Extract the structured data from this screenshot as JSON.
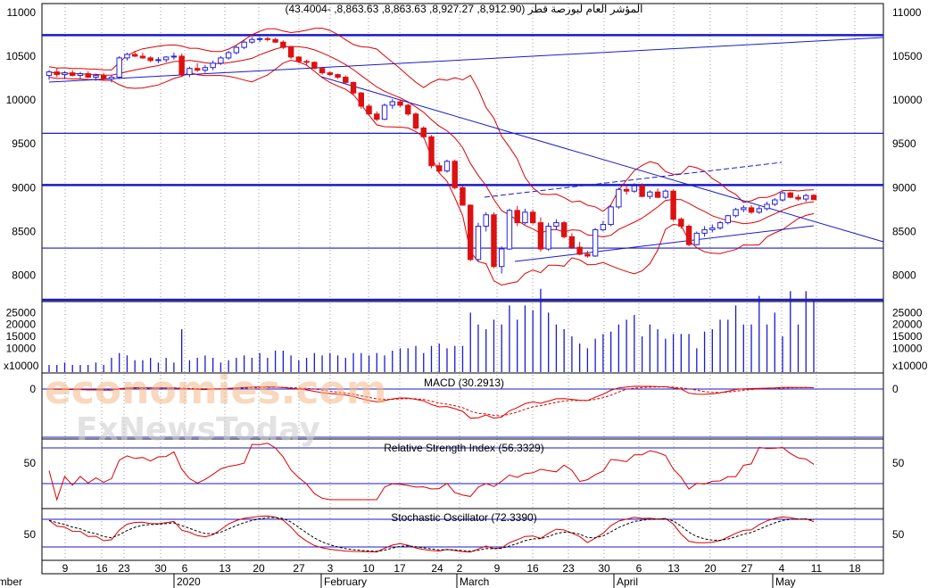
{
  "chart_data": {
    "type": "candlestick",
    "title": "المؤشر العام لبورصة قطر (8,912.90, 8,927.27, 8,863.63, 8,863.63, -43.4004)",
    "price_axis": {
      "ylim": [
        7700,
        11100
      ],
      "ticks": [
        "11000",
        "10500",
        "10000",
        "9500",
        "9000",
        "8500",
        "8000"
      ]
    },
    "volume_axis": {
      "ticks": [
        "25000",
        "20000",
        "15000",
        "10000"
      ],
      "multiplier_label": "x10000"
    },
    "x_ticks": [
      "9",
      "16",
      "23",
      "30",
      "6",
      "13",
      "20",
      "27",
      "3",
      "10",
      "17",
      "24",
      "2",
      "9",
      "16",
      "23",
      "30",
      "6",
      "13",
      "20",
      "27",
      "4",
      "11",
      "18"
    ],
    "month_labels": [
      "ember",
      "2020",
      "February",
      "March",
      "April",
      "May"
    ],
    "candles": [
      [
        10280,
        10340,
        10230,
        10320
      ],
      [
        10320,
        10360,
        10260,
        10290
      ],
      [
        10290,
        10330,
        10240,
        10310
      ],
      [
        10310,
        10340,
        10270,
        10280
      ],
      [
        10280,
        10320,
        10240,
        10300
      ],
      [
        10300,
        10330,
        10250,
        10260
      ],
      [
        10260,
        10300,
        10220,
        10280
      ],
      [
        10280,
        10310,
        10230,
        10240
      ],
      [
        10240,
        10280,
        10200,
        10260
      ],
      [
        10260,
        10500,
        10240,
        10480
      ],
      [
        10480,
        10540,
        10450,
        10520
      ],
      [
        10520,
        10560,
        10490,
        10500
      ],
      [
        10500,
        10540,
        10470,
        10480
      ],
      [
        10480,
        10500,
        10430,
        10450
      ],
      [
        10450,
        10490,
        10420,
        10460
      ],
      [
        10460,
        10500,
        10430,
        10490
      ],
      [
        10490,
        10540,
        10460,
        10500
      ],
      [
        10500,
        10530,
        10270,
        10290
      ],
      [
        10290,
        10380,
        10260,
        10360
      ],
      [
        10360,
        10420,
        10320,
        10340
      ],
      [
        10340,
        10400,
        10310,
        10370
      ],
      [
        10370,
        10450,
        10340,
        10420
      ],
      [
        10420,
        10500,
        10400,
        10480
      ],
      [
        10480,
        10560,
        10460,
        10540
      ],
      [
        10540,
        10620,
        10520,
        10600
      ],
      [
        10600,
        10680,
        10580,
        10660
      ],
      [
        10660,
        10720,
        10640,
        10690
      ],
      [
        10690,
        10720,
        10660,
        10700
      ],
      [
        10700,
        10720,
        10670,
        10690
      ],
      [
        10690,
        10710,
        10650,
        10660
      ],
      [
        10660,
        10680,
        10580,
        10600
      ],
      [
        10600,
        10610,
        10470,
        10490
      ],
      [
        10490,
        10500,
        10420,
        10440
      ],
      [
        10440,
        10460,
        10400,
        10430
      ],
      [
        10430,
        10440,
        10350,
        10360
      ],
      [
        10360,
        10380,
        10290,
        10310
      ],
      [
        10310,
        10330,
        10270,
        10290
      ],
      [
        10290,
        10300,
        10240,
        10260
      ],
      [
        10260,
        10280,
        10190,
        10200
      ],
      [
        10200,
        10210,
        10060,
        10080
      ],
      [
        10080,
        10090,
        9900,
        9930
      ],
      [
        9930,
        9950,
        9820,
        9840
      ],
      [
        9840,
        9870,
        9760,
        9780
      ],
      [
        9780,
        9960,
        9770,
        9940
      ],
      [
        9940,
        10010,
        9900,
        9980
      ],
      [
        9980,
        10000,
        9920,
        9940
      ],
      [
        9940,
        9960,
        9820,
        9840
      ],
      [
        9840,
        9860,
        9660,
        9680
      ],
      [
        9680,
        9700,
        9560,
        9580
      ],
      [
        9580,
        9600,
        9220,
        9250
      ],
      [
        9250,
        9290,
        9160,
        9190
      ],
      [
        9190,
        9320,
        9170,
        9300
      ],
      [
        9300,
        9320,
        8980,
        9000
      ],
      [
        9000,
        9020,
        8800,
        8800
      ],
      [
        8800,
        8810,
        8160,
        8180
      ],
      [
        8180,
        8600,
        8160,
        8560
      ],
      [
        8560,
        8720,
        8500,
        8690
      ],
      [
        8690,
        8720,
        8080,
        8100
      ],
      [
        8100,
        8330,
        8020,
        8300
      ],
      [
        8300,
        8760,
        8290,
        8740
      ],
      [
        8740,
        8790,
        8560,
        8600
      ],
      [
        8600,
        8760,
        8580,
        8720
      ],
      [
        8720,
        8750,
        8580,
        8600
      ],
      [
        8600,
        8660,
        8270,
        8300
      ],
      [
        8300,
        8600,
        8280,
        8560
      ],
      [
        8560,
        8640,
        8520,
        8600
      ],
      [
        8600,
        8620,
        8420,
        8440
      ],
      [
        8440,
        8480,
        8300,
        8320
      ],
      [
        8320,
        8380,
        8230,
        8240
      ],
      [
        8240,
        8280,
        8200,
        8220
      ],
      [
        8220,
        8540,
        8210,
        8520
      ],
      [
        8520,
        8620,
        8500,
        8580
      ],
      [
        8580,
        8800,
        8560,
        8780
      ],
      [
        8780,
        9000,
        8760,
        8980
      ],
      [
        8980,
        9030,
        8920,
        8960
      ],
      [
        8960,
        9050,
        8940,
        9020
      ],
      [
        9020,
        9050,
        8890,
        8900
      ],
      [
        8900,
        8970,
        8870,
        8950
      ],
      [
        8950,
        8990,
        8880,
        8890
      ],
      [
        8890,
        8980,
        8870,
        8960
      ],
      [
        8960,
        8980,
        8620,
        8640
      ],
      [
        8640,
        8660,
        8530,
        8560
      ],
      [
        8560,
        8580,
        8330,
        8350
      ],
      [
        8350,
        8500,
        8340,
        8480
      ],
      [
        8480,
        8560,
        8440,
        8520
      ],
      [
        8520,
        8580,
        8490,
        8540
      ],
      [
        8540,
        8620,
        8520,
        8600
      ],
      [
        8600,
        8690,
        8580,
        8680
      ],
      [
        8680,
        8770,
        8660,
        8750
      ],
      [
        8750,
        8800,
        8720,
        8770
      ],
      [
        8770,
        8800,
        8700,
        8720
      ],
      [
        8720,
        8790,
        8700,
        8760
      ],
      [
        8760,
        8840,
        8740,
        8810
      ],
      [
        8810,
        8880,
        8790,
        8860
      ],
      [
        8860,
        8960,
        8840,
        8940
      ],
      [
        8940,
        8950,
        8880,
        8890
      ],
      [
        8890,
        8920,
        8850,
        8870
      ],
      [
        8870,
        8930,
        8840,
        8910
      ],
      [
        8912.9,
        8927.27,
        8863.63,
        8863.63
      ]
    ],
    "volume": [
      3,
      3,
      4,
      3,
      3,
      3,
      4,
      3,
      6,
      8,
      7,
      5,
      5,
      6,
      4,
      6,
      4,
      18,
      5,
      6,
      7,
      6,
      4,
      5,
      6,
      7,
      6,
      8,
      6,
      9,
      9,
      7,
      5,
      6,
      8,
      7,
      8,
      7,
      6,
      8,
      8,
      7,
      8,
      7,
      9,
      10,
      10,
      11,
      8,
      11,
      12,
      10,
      11,
      11,
      25,
      20,
      18,
      22,
      20,
      28,
      22,
      28,
      26,
      35,
      25,
      20,
      18,
      15,
      12,
      10,
      14,
      16,
      17,
      20,
      22,
      24,
      15,
      20,
      18,
      14,
      16,
      16,
      16,
      10,
      17,
      18,
      22,
      22,
      28,
      20,
      20,
      32,
      20,
      25,
      15,
      34,
      20,
      34,
      30
    ],
    "indicators": {
      "macd": {
        "label": "MACD (30.2913)",
        "y_tick": "0"
      },
      "rsi": {
        "label": "Relative Strength Index (56.3329)",
        "y_tick": "50"
      },
      "stochastic": {
        "label": "Stochastic Oscillator (72.3390)",
        "y_tick": "50"
      }
    },
    "horizontal_levels": [
      10740,
      9620,
      9030,
      8310,
      7720
    ]
  },
  "watermark": {
    "line1": "economies.com",
    "line2": "FxNewsToday"
  },
  "colors": {
    "up": "#2222dd",
    "down": "#dd1111",
    "band": "#dd0000",
    "trend": "#1a1acc",
    "grid": "#9a9a9a"
  }
}
